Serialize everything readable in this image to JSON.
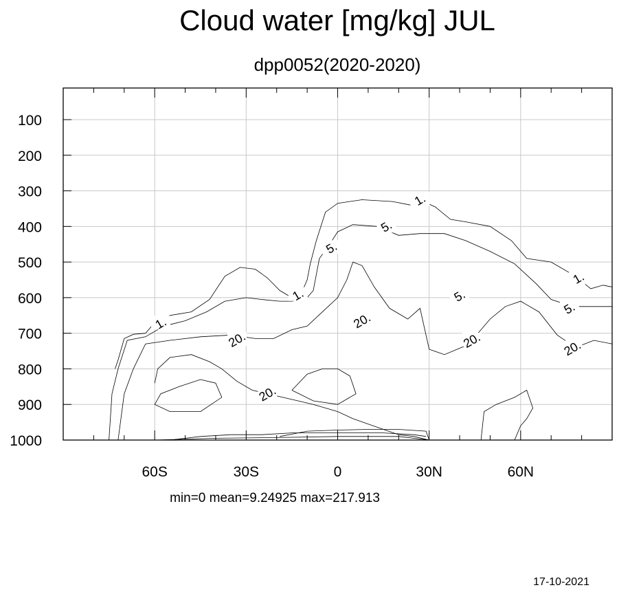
{
  "chart_data": {
    "type": "contour",
    "title": "Cloud water [mg/kg] JUL",
    "subtitle": "dpp0052(2020-2020)",
    "x_axis": {
      "range": [
        -90,
        90
      ],
      "ticks": [
        -60,
        -30,
        0,
        30,
        60
      ],
      "tick_labels": [
        "60S",
        "30S",
        "0",
        "30N",
        "60N"
      ]
    },
    "y_axis": {
      "range": [
        1000,
        10
      ],
      "ticks": [
        100,
        200,
        300,
        400,
        500,
        600,
        700,
        800,
        900,
        1000
      ],
      "tick_labels": [
        "100",
        "200",
        "300",
        "400",
        "500",
        "600",
        "700",
        "800",
        "900",
        "1000"
      ]
    },
    "grid": true,
    "contour_levels": [
      1,
      5,
      20
    ],
    "contour_label_text": {
      "1": "1.",
      "5": "5.",
      "20": "20."
    },
    "contours": [
      {
        "level": 1,
        "points": [
          [
            -73,
            800
          ],
          [
            -72,
            775
          ],
          [
            -70,
            715
          ],
          [
            -67,
            703
          ],
          [
            -63,
            700
          ],
          [
            -60,
            670
          ],
          [
            -55,
            650
          ],
          [
            -48,
            640
          ],
          [
            -42,
            605
          ],
          [
            -37,
            540
          ],
          [
            -32,
            515
          ],
          [
            -27,
            520
          ],
          [
            -23,
            545
          ],
          [
            -19,
            580
          ],
          [
            -15,
            600
          ],
          [
            -12,
            590
          ],
          [
            -10,
            550
          ],
          [
            -9,
            505
          ],
          [
            -7,
            440
          ],
          [
            -4,
            360
          ],
          [
            0,
            335
          ],
          [
            8,
            325
          ],
          [
            18,
            330
          ],
          [
            24,
            340
          ],
          [
            28,
            330
          ],
          [
            32,
            345
          ],
          [
            37,
            380
          ],
          [
            42,
            387
          ],
          [
            50,
            400
          ],
          [
            57,
            440
          ],
          [
            62,
            490
          ],
          [
            70,
            500
          ],
          [
            78,
            540
          ],
          [
            83,
            575
          ],
          [
            87,
            565
          ],
          [
            90,
            570
          ]
        ]
      },
      {
        "level": 5,
        "points": [
          [
            -75,
            1000
          ],
          [
            -74,
            870
          ],
          [
            -72,
            800
          ],
          [
            -69,
            720
          ],
          [
            -63,
            710
          ],
          [
            -57,
            680
          ],
          [
            -50,
            665
          ],
          [
            -43,
            640
          ],
          [
            -37,
            610
          ],
          [
            -30,
            600
          ],
          [
            -25,
            605
          ],
          [
            -19,
            610
          ],
          [
            -15,
            610
          ],
          [
            -10,
            600
          ],
          [
            -8,
            580
          ],
          [
            -6,
            490
          ],
          [
            -3,
            455
          ],
          [
            0,
            415
          ],
          [
            5,
            395
          ],
          [
            13,
            400
          ],
          [
            20,
            425
          ],
          [
            27,
            420
          ],
          [
            31,
            420
          ],
          [
            35,
            420
          ],
          [
            42,
            440
          ],
          [
            50,
            470
          ],
          [
            58,
            505
          ],
          [
            65,
            560
          ],
          [
            70,
            605
          ],
          [
            77,
            625
          ],
          [
            84,
            625
          ],
          [
            90,
            625
          ]
        ]
      },
      {
        "level": 20,
        "points": [
          [
            -72,
            1000
          ],
          [
            -70,
            870
          ],
          [
            -67,
            800
          ],
          [
            -63,
            730
          ],
          [
            -55,
            720
          ],
          [
            -45,
            710
          ],
          [
            -35,
            705
          ],
          [
            -27,
            715
          ],
          [
            -21,
            715
          ],
          [
            -15,
            690
          ],
          [
            -10,
            680
          ],
          [
            -5,
            640
          ],
          [
            0,
            600
          ],
          [
            3,
            550
          ],
          [
            5,
            500
          ],
          [
            8,
            510
          ],
          [
            12,
            570
          ],
          [
            17,
            630
          ],
          [
            23,
            660
          ],
          [
            27,
            630
          ],
          [
            30,
            745
          ],
          [
            35,
            760
          ],
          [
            42,
            735
          ],
          [
            46,
            700
          ],
          [
            50,
            660
          ],
          [
            55,
            625
          ],
          [
            60,
            610
          ],
          [
            66,
            640
          ],
          [
            72,
            705
          ],
          [
            78,
            740
          ],
          [
            84,
            720
          ],
          [
            90,
            730
          ]
        ]
      },
      {
        "level": 20,
        "points": [
          [
            -60,
            840
          ],
          [
            -59,
            800
          ],
          [
            -55,
            768
          ],
          [
            -48,
            760
          ],
          [
            -42,
            780
          ],
          [
            -38,
            800
          ],
          [
            -33,
            835
          ],
          [
            -28,
            860
          ],
          [
            -23,
            870
          ],
          [
            -18,
            880
          ],
          [
            -13,
            890
          ],
          [
            -8,
            900
          ],
          [
            -4,
            910
          ],
          [
            0,
            920
          ],
          [
            5,
            940
          ],
          [
            10,
            955
          ],
          [
            15,
            970
          ],
          [
            20,
            985
          ],
          [
            25,
            990
          ],
          [
            30,
            1000
          ]
        ]
      },
      {
        "level": 20,
        "points": [
          [
            -40,
            840
          ],
          [
            -45,
            830
          ],
          [
            -52,
            850
          ],
          [
            -58,
            870
          ],
          [
            -60,
            900
          ],
          [
            -55,
            920
          ],
          [
            -45,
            920
          ],
          [
            -38,
            880
          ],
          [
            -40,
            840
          ]
        ]
      },
      {
        "level": 20,
        "points": [
          [
            -19,
            990
          ],
          [
            -10,
            975
          ],
          [
            0,
            972
          ],
          [
            10,
            970
          ],
          [
            20,
            970
          ],
          [
            29,
            975
          ],
          [
            30,
            1000
          ]
        ]
      },
      {
        "level": 20,
        "points": [
          [
            -55,
            1000
          ],
          [
            -45,
            990
          ],
          [
            -35,
            985
          ],
          [
            -25,
            985
          ],
          [
            -15,
            980
          ],
          [
            -5,
            980
          ],
          [
            5,
            980
          ],
          [
            15,
            980
          ],
          [
            25,
            985
          ],
          [
            29,
            990
          ]
        ]
      },
      {
        "level": 20,
        "points": [
          [
            -60,
            1000
          ],
          [
            -40,
            995
          ],
          [
            -20,
            993
          ],
          [
            0,
            990
          ],
          [
            20,
            990
          ],
          [
            30,
            1000
          ]
        ]
      },
      {
        "level": 20,
        "points": [
          [
            -15,
            860
          ],
          [
            -10,
            815
          ],
          [
            -5,
            800
          ],
          [
            0,
            800
          ],
          [
            4,
            820
          ],
          [
            6,
            870
          ],
          [
            0,
            900
          ],
          [
            -8,
            890
          ],
          [
            -15,
            860
          ]
        ]
      },
      {
        "level": 20,
        "points": [
          [
            47,
            1000
          ],
          [
            48,
            920
          ],
          [
            52,
            900
          ],
          [
            58,
            880
          ],
          [
            62,
            860
          ],
          [
            64,
            910
          ],
          [
            62,
            940
          ],
          [
            60,
            960
          ],
          [
            58,
            1000
          ]
        ]
      }
    ],
    "contour_labels": [
      {
        "text": "1.",
        "x": 27,
        "y": 325
      },
      {
        "text": "1.",
        "x": -13,
        "y": 592
      },
      {
        "text": "1.",
        "x": -58,
        "y": 672
      },
      {
        "text": "1.",
        "x": 79,
        "y": 545
      },
      {
        "text": "5.",
        "x": -2,
        "y": 460
      },
      {
        "text": "5.",
        "x": 16,
        "y": 400
      },
      {
        "text": "5.",
        "x": 40,
        "y": 595
      },
      {
        "text": "5.",
        "x": 76,
        "y": 630
      },
      {
        "text": "20.",
        "x": -33,
        "y": 718
      },
      {
        "text": "20.",
        "x": 8,
        "y": 665
      },
      {
        "text": "20.",
        "x": 44,
        "y": 720
      },
      {
        "text": "20.",
        "x": 77,
        "y": 742
      },
      {
        "text": "20.",
        "x": -23,
        "y": 870
      }
    ],
    "stats": {
      "min": "0",
      "mean": "9.24925",
      "max": "217.913"
    }
  },
  "labels": {
    "stats_text": "min=0   mean=9.24925   max=217.913",
    "date": "17-10-2021"
  }
}
